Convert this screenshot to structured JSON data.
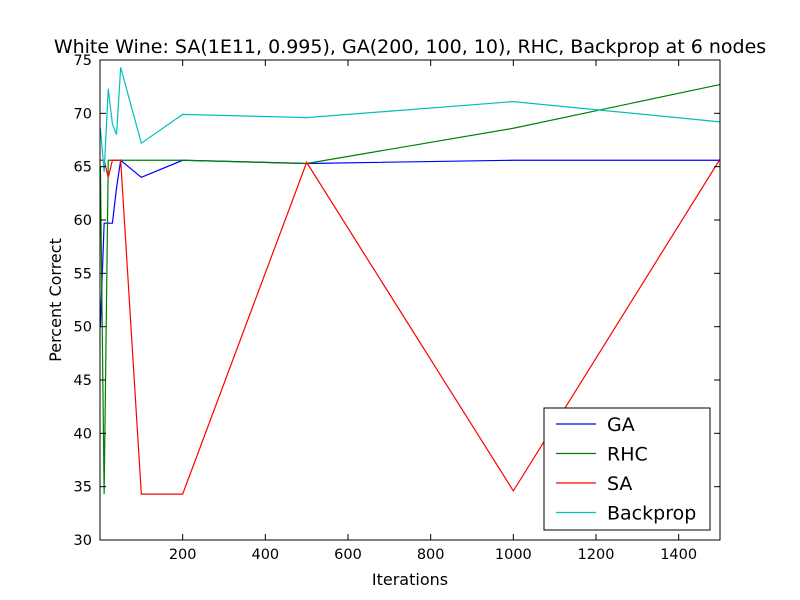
{
  "chart_data": {
    "type": "line",
    "title": "White Wine: SA(1E11, 0.995), GA(200, 100, 10), RHC, Backprop at 6 nodes",
    "xlabel": "Iterations",
    "ylabel": "Percent Correct",
    "xlim": [
      0,
      1500
    ],
    "ylim": [
      30,
      75
    ],
    "xticks": [
      200,
      400,
      600,
      800,
      1000,
      1200,
      1400
    ],
    "yticks": [
      30,
      35,
      40,
      45,
      50,
      55,
      60,
      65,
      70,
      75
    ],
    "grid": false,
    "legend_position": "lower-right",
    "series": [
      {
        "name": "GA",
        "color": "#0000ff",
        "x": [
          1,
          10,
          20,
          30,
          40,
          50,
          100,
          200,
          500,
          1000,
          1500
        ],
        "y": [
          50.0,
          59.7,
          59.7,
          59.7,
          63.0,
          65.6,
          64.0,
          65.6,
          65.3,
          65.6,
          65.6
        ]
      },
      {
        "name": "RHC",
        "color": "#008000",
        "x": [
          1,
          10,
          20,
          30,
          40,
          50,
          100,
          200,
          500,
          1000,
          1500
        ],
        "y": [
          65.0,
          34.3,
          65.6,
          65.6,
          65.6,
          65.6,
          65.6,
          65.6,
          65.3,
          68.6,
          72.7
        ]
      },
      {
        "name": "SA",
        "color": "#ff0000",
        "x": [
          1,
          10,
          20,
          30,
          40,
          50,
          100,
          200,
          500,
          1000,
          1500
        ],
        "y": [
          65.6,
          65.6,
          64.0,
          65.6,
          65.6,
          65.6,
          34.3,
          34.3,
          65.4,
          34.6,
          65.7
        ]
      },
      {
        "name": "Backprop",
        "color": "#00bfbf",
        "x": [
          1,
          10,
          20,
          30,
          40,
          50,
          100,
          200,
          500,
          1000,
          1500
        ],
        "y": [
          68.6,
          64.5,
          72.3,
          69.0,
          68.0,
          74.3,
          67.2,
          69.9,
          69.6,
          71.1,
          69.2
        ]
      }
    ]
  }
}
